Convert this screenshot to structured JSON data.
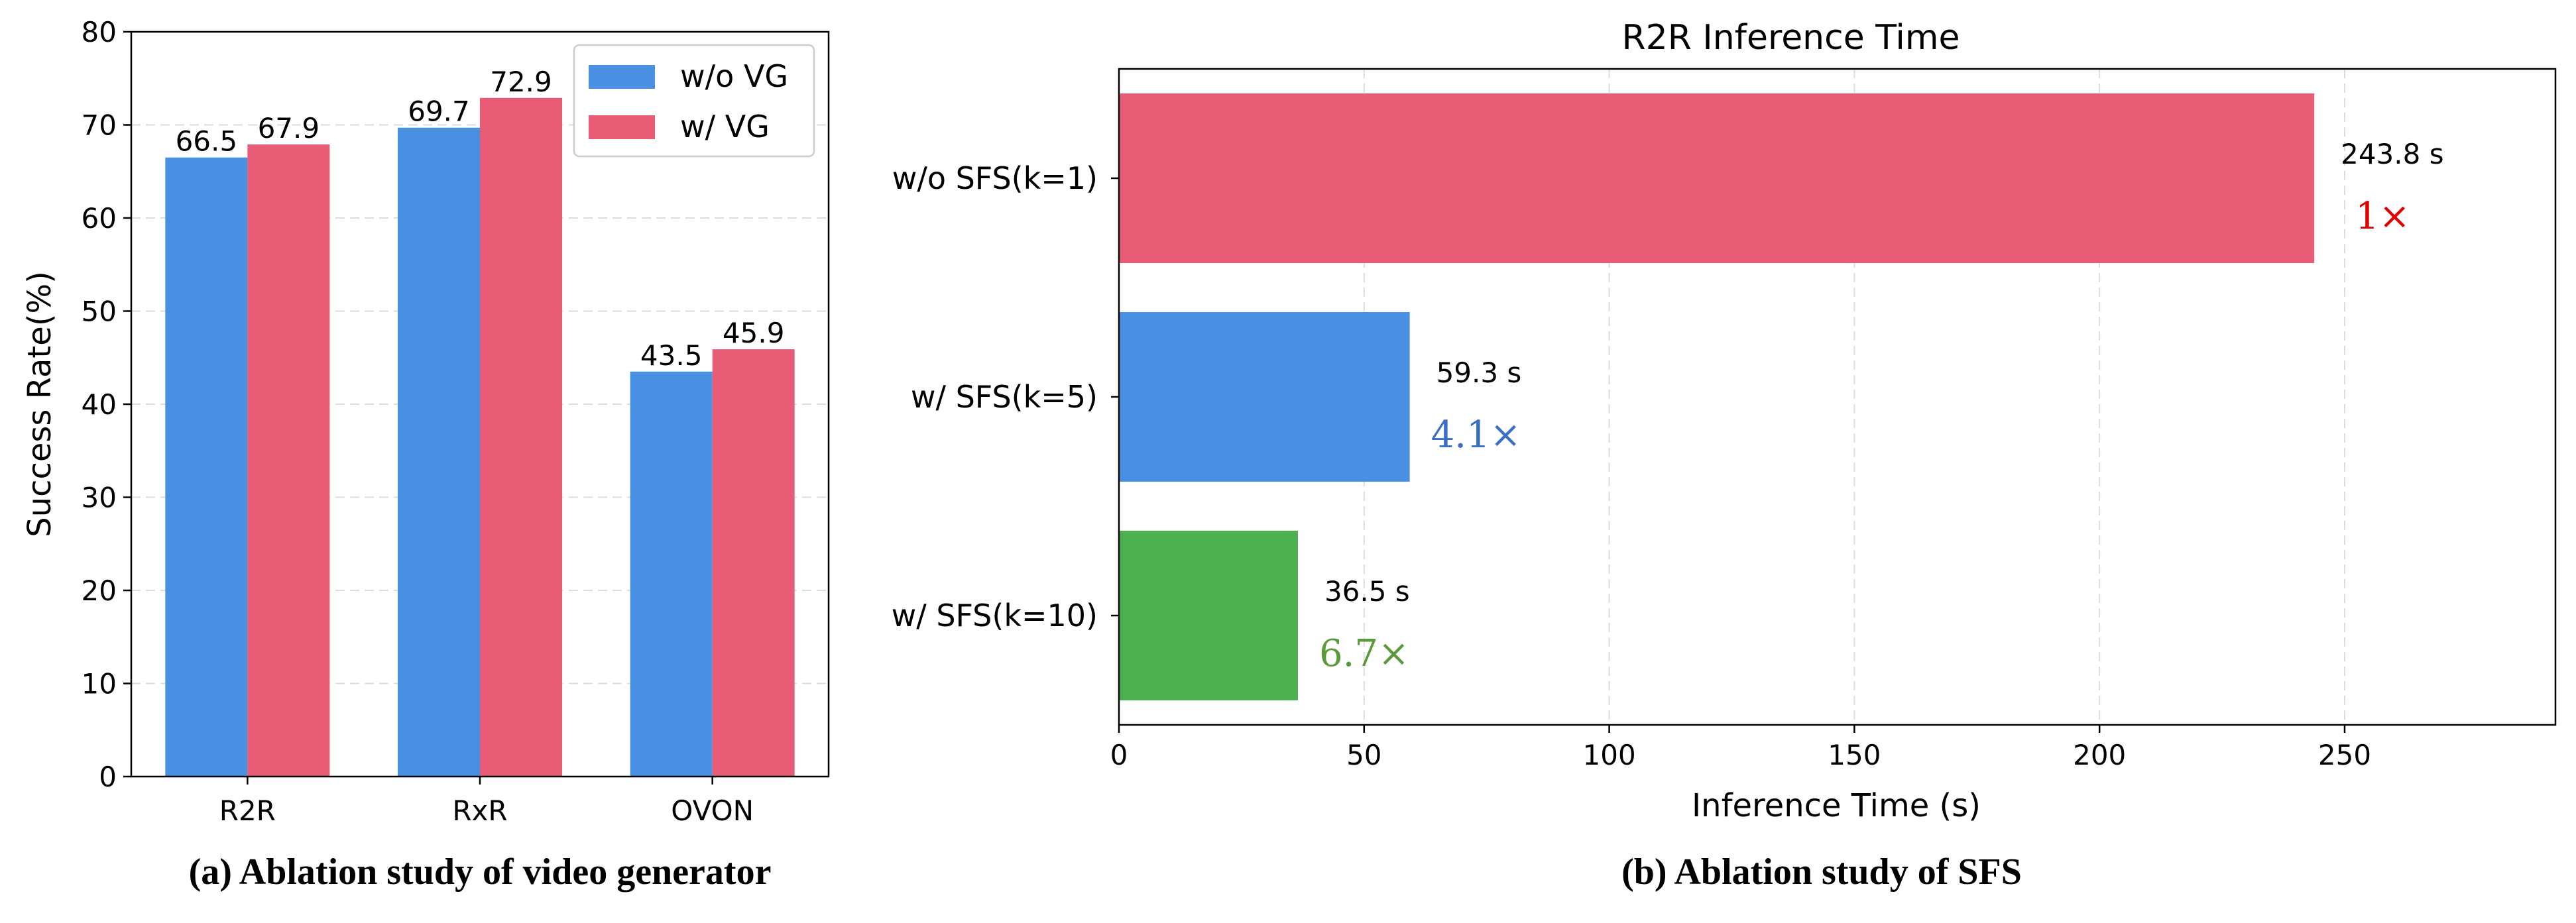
{
  "chart_data": [
    {
      "type": "bar",
      "title": "",
      "caption": "(a) Ablation study of video generator",
      "categories": [
        "R2R",
        "RxR",
        "OVON"
      ],
      "series": [
        {
          "name": "w/o VG",
          "color": "#4a90e2",
          "values": [
            66.5,
            69.7,
            43.5
          ]
        },
        {
          "name": "w/ VG",
          "color": "#e85d75",
          "values": [
            67.9,
            72.9,
            45.9
          ]
        }
      ],
      "xlabel": "",
      "ylabel": "Success Rate(%)",
      "ylim": [
        0,
        80
      ],
      "yticks": [
        0,
        10,
        20,
        30,
        40,
        50,
        60,
        70,
        80
      ],
      "grid": true,
      "legend": "top-right"
    },
    {
      "type": "bar",
      "orientation": "horizontal",
      "title": "R2R Inference Time",
      "caption": "(b) Ablation study of SFS",
      "categories": [
        "w/o SFS(k=1)",
        "w/ SFS(k=5)",
        "w/ SFS(k=10)"
      ],
      "values": [
        243.8,
        59.3,
        36.5
      ],
      "value_labels": [
        "243.8 s",
        "59.3 s",
        "36.5 s"
      ],
      "speedups": [
        "1×",
        "4.1×",
        "6.7×"
      ],
      "colors": [
        "#e85d75",
        "#4a90e2",
        "#4caf50"
      ],
      "speedup_colors": [
        "#e00000",
        "#3a6fc4",
        "#5a9a3a"
      ],
      "xlabel": "Inference Time (s)",
      "ylabel": "",
      "xlim": [
        0,
        293
      ],
      "xticks": [
        0,
        50,
        100,
        150,
        200,
        250
      ],
      "grid": true
    }
  ]
}
